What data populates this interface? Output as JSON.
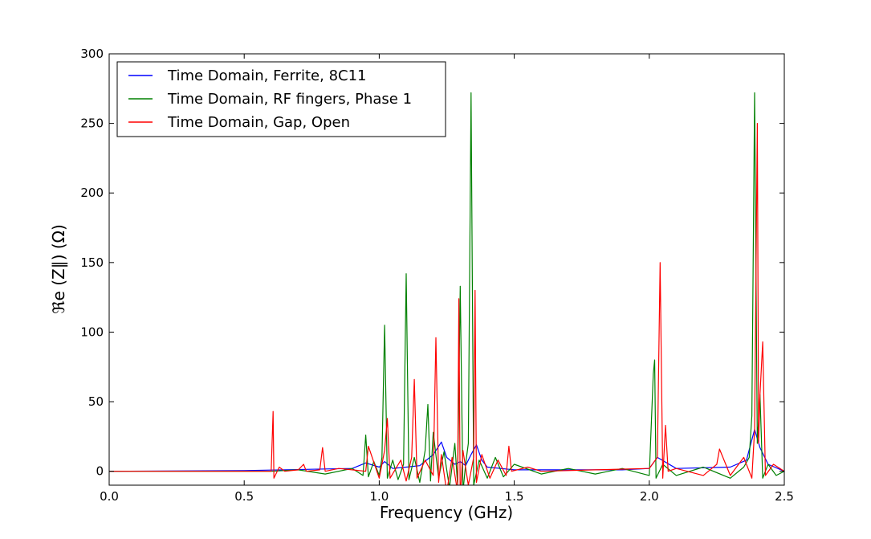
{
  "chart_data": {
    "type": "line",
    "title": "",
    "xlabel": "Frequency (GHz)",
    "ylabel": "ℜe (Z∥) (Ω)",
    "xlim": [
      0.0,
      2.5
    ],
    "ylim": [
      -10,
      300
    ],
    "x_ticks": [
      "0.0",
      "0.5",
      "1.0",
      "1.5",
      "2.0",
      "2.5"
    ],
    "x_tick_values": [
      0.0,
      0.5,
      1.0,
      1.5,
      2.0,
      2.5
    ],
    "y_ticks": [
      "0",
      "50",
      "100",
      "150",
      "200",
      "250",
      "300"
    ],
    "y_tick_values": [
      0,
      50,
      100,
      150,
      200,
      250,
      300
    ],
    "grid": false,
    "legend_position": "top-left",
    "series": [
      {
        "name": "Time Domain, Ferrite, 8C11",
        "color": "#0000ff",
        "x": [
          0.0,
          0.5,
          0.9,
          0.95,
          1.0,
          1.02,
          1.05,
          1.1,
          1.15,
          1.2,
          1.23,
          1.25,
          1.28,
          1.3,
          1.32,
          1.34,
          1.36,
          1.38,
          1.4,
          1.5,
          1.7,
          1.9,
          2.0,
          2.03,
          2.1,
          2.3,
          2.36,
          2.39,
          2.41,
          2.44,
          2.5
        ],
        "y": [
          0,
          0.5,
          2,
          6,
          3,
          7,
          2,
          3,
          4,
          12,
          21,
          10,
          5,
          7,
          4,
          12,
          19,
          8,
          3,
          1,
          1,
          1,
          2,
          10,
          2,
          3,
          8,
          30,
          17,
          5,
          0
        ]
      },
      {
        "name": "Time Domain, RF fingers, Phase 1",
        "color": "#008000",
        "x": [
          0.0,
          0.6,
          0.7,
          0.8,
          0.9,
          0.94,
          0.95,
          0.96,
          0.98,
          1.0,
          1.01,
          1.02,
          1.03,
          1.05,
          1.07,
          1.09,
          1.1,
          1.11,
          1.13,
          1.15,
          1.17,
          1.18,
          1.19,
          1.2,
          1.22,
          1.24,
          1.26,
          1.28,
          1.29,
          1.3,
          1.31,
          1.32,
          1.33,
          1.34,
          1.35,
          1.37,
          1.4,
          1.43,
          1.46,
          1.5,
          1.6,
          1.7,
          1.8,
          1.9,
          2.0,
          2.015,
          2.02,
          2.025,
          2.05,
          2.1,
          2.2,
          2.3,
          2.35,
          2.37,
          2.38,
          2.39,
          2.4,
          2.41,
          2.42,
          2.44,
          2.47,
          2.5
        ],
        "y": [
          0,
          0,
          1,
          -2,
          2,
          -3,
          26,
          -4,
          7,
          -3,
          10,
          105,
          -5,
          8,
          -6,
          5,
          142,
          -6,
          10,
          -8,
          15,
          48,
          -7,
          28,
          -5,
          14,
          -12,
          20,
          -10,
          133,
          -15,
          5,
          20,
          272,
          -10,
          8,
          -5,
          10,
          -4,
          5,
          -2,
          2,
          -2,
          2,
          -3,
          70,
          80,
          -5,
          5,
          -3,
          3,
          -5,
          3,
          10,
          40,
          272,
          20,
          55,
          -5,
          5,
          -3,
          0
        ]
      },
      {
        "name": "Time Domain, Gap, Open",
        "color": "#ff0000",
        "x": [
          0.0,
          0.5,
          0.6,
          0.607,
          0.61,
          0.63,
          0.65,
          0.7,
          0.72,
          0.73,
          0.78,
          0.79,
          0.8,
          0.85,
          0.9,
          0.95,
          0.96,
          1.0,
          1.02,
          1.03,
          1.04,
          1.08,
          1.1,
          1.12,
          1.13,
          1.14,
          1.17,
          1.2,
          1.21,
          1.22,
          1.23,
          1.25,
          1.27,
          1.29,
          1.295,
          1.3,
          1.31,
          1.33,
          1.35,
          1.355,
          1.36,
          1.38,
          1.41,
          1.44,
          1.47,
          1.48,
          1.49,
          1.55,
          1.6,
          1.8,
          2.0,
          2.03,
          2.04,
          2.05,
          2.06,
          2.07,
          2.1,
          2.2,
          2.25,
          2.26,
          2.3,
          2.35,
          2.38,
          2.39,
          2.4,
          2.405,
          2.41,
          2.42,
          2.43,
          2.46,
          2.5
        ],
        "y": [
          0,
          0,
          0,
          43,
          -5,
          3,
          0,
          1,
          5,
          0,
          1,
          17,
          0,
          2,
          1,
          0,
          18,
          -5,
          15,
          38,
          -5,
          8,
          -7,
          10,
          66,
          -5,
          8,
          -3,
          96,
          -8,
          12,
          -15,
          10,
          -15,
          124,
          -20,
          15,
          -10,
          10,
          130,
          -8,
          12,
          -5,
          8,
          -3,
          18,
          0,
          3,
          0,
          1,
          2,
          10,
          150,
          -5,
          33,
          0,
          2,
          -3,
          5,
          16,
          -3,
          10,
          -5,
          30,
          250,
          20,
          55,
          93,
          -3,
          5,
          0
        ]
      }
    ]
  }
}
